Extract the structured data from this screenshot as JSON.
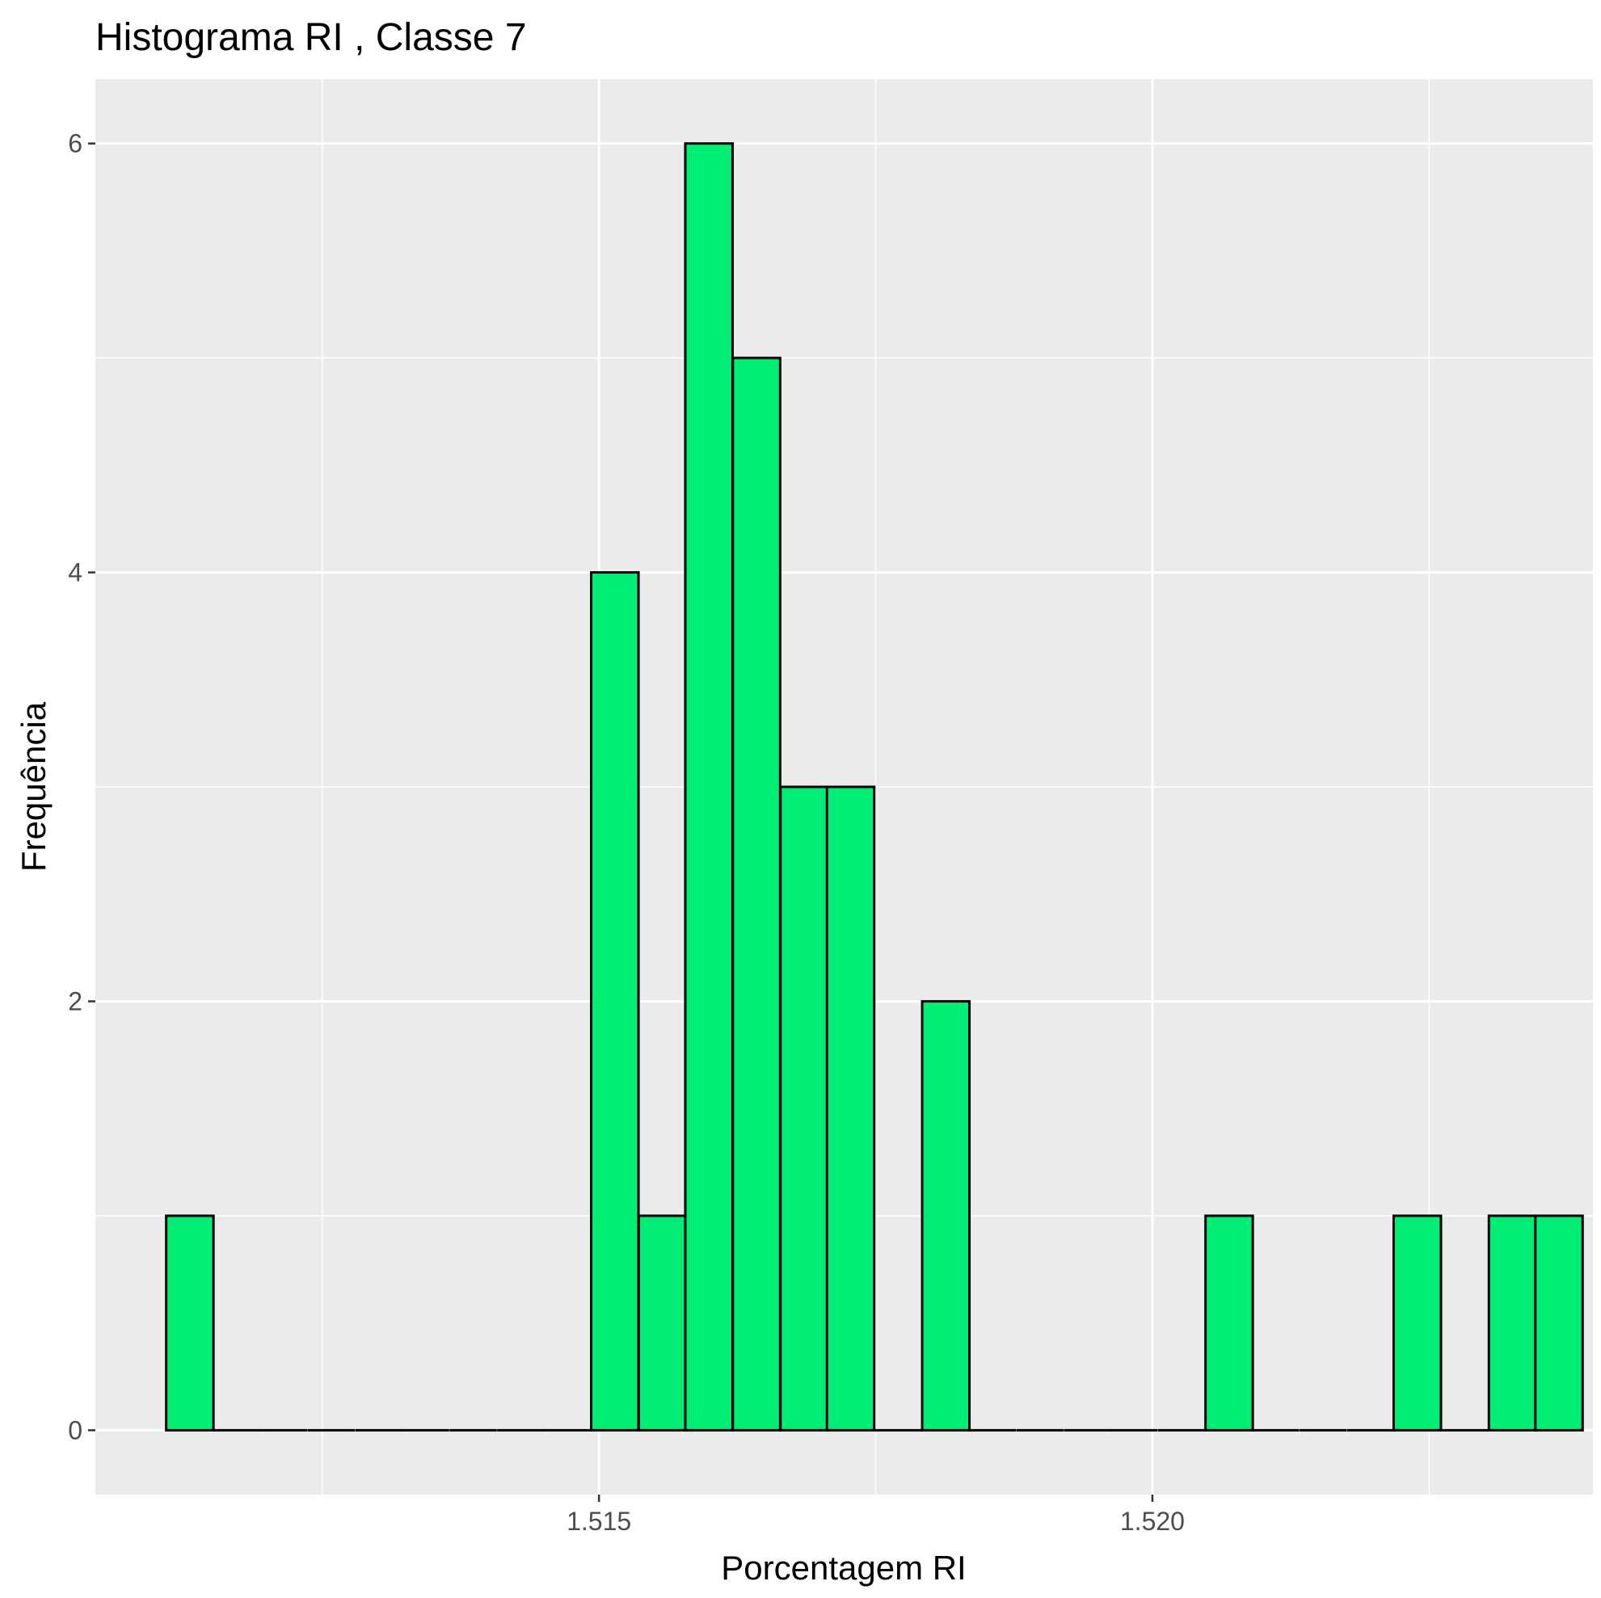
{
  "chart_data": {
    "type": "bar",
    "title": "Histograma  RI , Classe  7",
    "xlabel": "Porcentagem RI",
    "ylabel": "Frequência",
    "xlim": [
      1.51045,
      1.52398
    ],
    "ylim": [
      -0.3,
      6.3
    ],
    "x_ticks": [
      {
        "value": 1.515,
        "label": "1.515"
      },
      {
        "value": 1.52,
        "label": "1.520"
      }
    ],
    "x_minor_ticks": [
      1.5125,
      1.5175,
      1.5225
    ],
    "y_ticks": [
      {
        "value": 0,
        "label": "0"
      },
      {
        "value": 2,
        "label": "2"
      },
      {
        "value": 4,
        "label": "4"
      },
      {
        "value": 6,
        "label": "6"
      }
    ],
    "y_minor_ticks": [
      1,
      3,
      5
    ],
    "grid": true,
    "bin_width": 0.000427,
    "bins": [
      {
        "x_start": 1.51109,
        "count": 1
      },
      {
        "x_start": 1.51152,
        "count": 0
      },
      {
        "x_start": 1.51194,
        "count": 0
      },
      {
        "x_start": 1.51237,
        "count": 0
      },
      {
        "x_start": 1.5128,
        "count": 0
      },
      {
        "x_start": 1.51322,
        "count": 0
      },
      {
        "x_start": 1.51365,
        "count": 0
      },
      {
        "x_start": 1.51408,
        "count": 0
      },
      {
        "x_start": 1.5145,
        "count": 0
      },
      {
        "x_start": 1.51493,
        "count": 4
      },
      {
        "x_start": 1.51536,
        "count": 1
      },
      {
        "x_start": 1.51578,
        "count": 6
      },
      {
        "x_start": 1.51621,
        "count": 5
      },
      {
        "x_start": 1.51664,
        "count": 3
      },
      {
        "x_start": 1.51706,
        "count": 3
      },
      {
        "x_start": 1.51749,
        "count": 0
      },
      {
        "x_start": 1.51792,
        "count": 2
      },
      {
        "x_start": 1.51834,
        "count": 0
      },
      {
        "x_start": 1.51877,
        "count": 0
      },
      {
        "x_start": 1.5192,
        "count": 0
      },
      {
        "x_start": 1.51962,
        "count": 0
      },
      {
        "x_start": 1.52005,
        "count": 0
      },
      {
        "x_start": 1.52048,
        "count": 1
      },
      {
        "x_start": 1.5209,
        "count": 0
      },
      {
        "x_start": 1.52133,
        "count": 0
      },
      {
        "x_start": 1.52176,
        "count": 0
      },
      {
        "x_start": 1.52218,
        "count": 1
      },
      {
        "x_start": 1.52261,
        "count": 0
      },
      {
        "x_start": 1.52304,
        "count": 1
      },
      {
        "x_start": 1.52346,
        "count": 1
      }
    ],
    "colors": {
      "bar_fill": "#00EE76",
      "bar_stroke": "#000000",
      "panel_background": "#EBEBEB",
      "grid": "#FFFFFF",
      "tick_label": "#4D4D4D"
    }
  }
}
